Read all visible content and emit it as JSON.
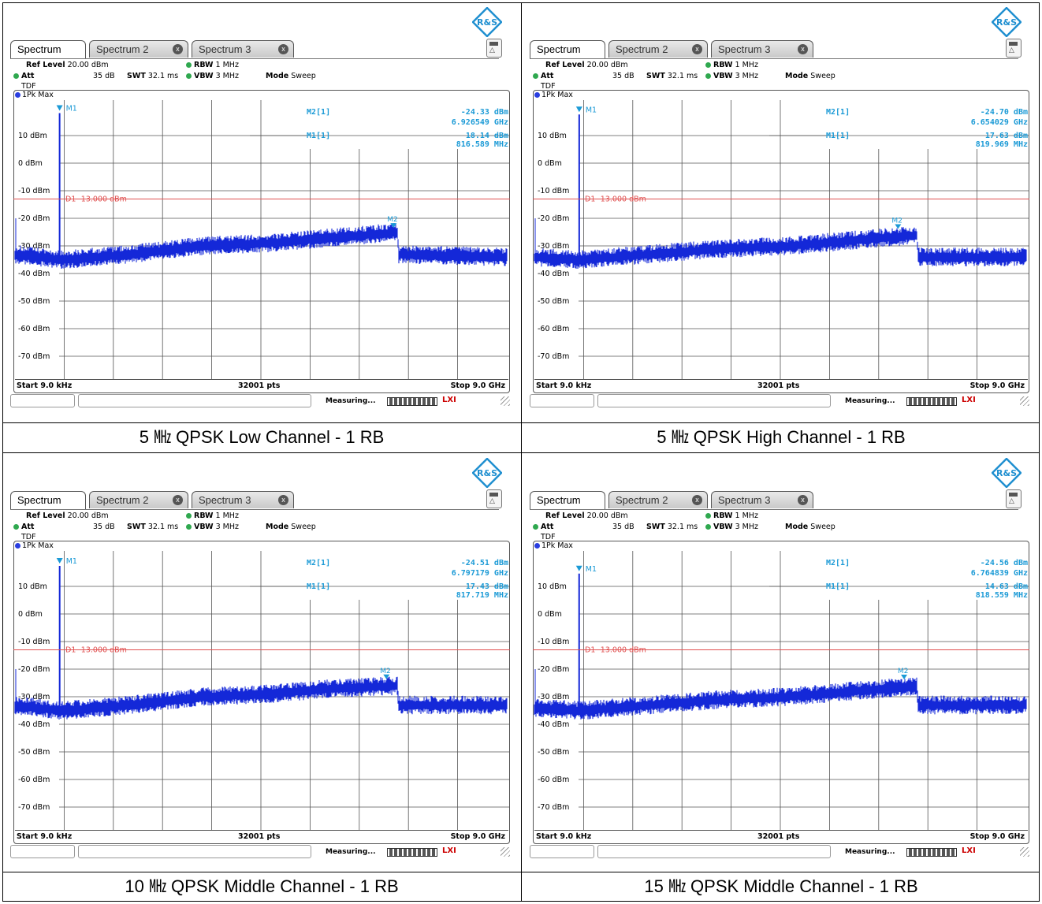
{
  "common": {
    "logo_text": "R&S",
    "tabs": [
      {
        "label": "Spectrum",
        "active": true
      },
      {
        "label": "Spectrum 2",
        "active": false
      },
      {
        "label": "Spectrum 3",
        "active": false
      }
    ],
    "close_glyph": "x",
    "ref_level_label": "Ref Level",
    "ref_level_value": "20.00 dBm",
    "att_label": "Att",
    "att_value": "35 dB",
    "swt_label": "SWT",
    "swt_value": "32.1 ms",
    "rbw_label": "RBW",
    "rbw_value": "1 MHz",
    "vbw_label": "VBW",
    "vbw_value": "3 MHz",
    "mode_label": "Mode",
    "mode_value": "Sweep",
    "tdf_label": "TDF",
    "trace_label": "1Pk Max",
    "y_ticks": [
      "10 dBm",
      "0 dBm",
      "-10 dBm",
      "-20 dBm",
      "-30 dBm",
      "-40 dBm",
      "-50 dBm",
      "-60 dBm",
      "-70 dBm"
    ],
    "limit_label": "D1  -13.000 dBm",
    "m1_label": "M1",
    "m2_label": "M2",
    "m2_readout_label": "M2[1]",
    "m1_readout_label": "M1[1]",
    "start_label": "Start 9.0 kHz",
    "points_label": "32001 pts",
    "stop_label": "Stop 9.0 GHz",
    "measuring_label": "Measuring...",
    "lxi_label": "LXI",
    "colors": {
      "trace": "#1428d8",
      "limit": "#e05050",
      "marker": "#1b9ad6",
      "grid": "#555555"
    }
  },
  "panels": [
    {
      "caption": "5 ㎒ QPSK Low Channel - 1 RB",
      "m2_level": "-24.33 dBm",
      "m2_freq": "6.926549 GHz",
      "m1_level": "18.14 dBm",
      "m1_freq": "816.589 MHz",
      "chart_data": {
        "type": "line",
        "x_range_ghz": [
          9e-06,
          9.0
        ],
        "y_range_dbm": [
          -80,
          20
        ],
        "limit_dbm": -13.0,
        "m1": {
          "x_ghz": 0.8166,
          "y_dbm": 18.14
        },
        "m2": {
          "x_ghz": 6.9265,
          "y_dbm": -24.33
        },
        "noise_floor": [
          [
            0.0,
            -33
          ],
          [
            0.85,
            -35
          ],
          [
            2.1,
            -33
          ],
          [
            3.4,
            -30
          ],
          [
            4.6,
            -29
          ],
          [
            5.8,
            -27
          ],
          [
            7.0,
            -25
          ],
          [
            7.02,
            -33
          ],
          [
            9.0,
            -34
          ]
        ]
      }
    },
    {
      "caption": "5 ㎒ QPSK High Channel - 1 RB",
      "m2_level": "-24.70 dBm",
      "m2_freq": "6.654029 GHz",
      "m1_level": "17.63 dBm",
      "m1_freq": "819.969 MHz",
      "chart_data": {
        "type": "line",
        "x_range_ghz": [
          9e-06,
          9.0
        ],
        "y_range_dbm": [
          -80,
          20
        ],
        "limit_dbm": -13.0,
        "m1": {
          "x_ghz": 0.82,
          "y_dbm": 17.63
        },
        "m2": {
          "x_ghz": 6.654,
          "y_dbm": -24.7
        },
        "noise_floor": [
          [
            0.0,
            -34
          ],
          [
            0.85,
            -35
          ],
          [
            2.1,
            -33
          ],
          [
            3.4,
            -31
          ],
          [
            4.6,
            -30
          ],
          [
            5.8,
            -28
          ],
          [
            7.0,
            -26
          ],
          [
            7.02,
            -34
          ],
          [
            9.0,
            -34
          ]
        ]
      }
    },
    {
      "caption": "10 ㎒ QPSK Middle Channel - 1 RB",
      "m2_level": "-24.51 dBm",
      "m2_freq": "6.797179 GHz",
      "m1_level": "17.43 dBm",
      "m1_freq": "817.719 MHz",
      "chart_data": {
        "type": "line",
        "x_range_ghz": [
          9e-06,
          9.0
        ],
        "y_range_dbm": [
          -80,
          20
        ],
        "limit_dbm": -13.0,
        "m1": {
          "x_ghz": 0.8177,
          "y_dbm": 17.43
        },
        "m2": {
          "x_ghz": 6.7972,
          "y_dbm": -24.51
        },
        "noise_floor": [
          [
            0.0,
            -33
          ],
          [
            0.85,
            -35
          ],
          [
            2.1,
            -33
          ],
          [
            3.4,
            -30
          ],
          [
            4.6,
            -29
          ],
          [
            5.8,
            -27
          ],
          [
            7.0,
            -26
          ],
          [
            7.02,
            -33
          ],
          [
            9.0,
            -33
          ]
        ]
      }
    },
    {
      "caption": "15 ㎒ QPSK Middle Channel - 1 RB",
      "m2_level": "-24.56 dBm",
      "m2_freq": "6.764839 GHz",
      "m1_level": "14.63 dBm",
      "m1_freq": "818.559 MHz",
      "chart_data": {
        "type": "line",
        "x_range_ghz": [
          9e-06,
          9.0
        ],
        "y_range_dbm": [
          -80,
          20
        ],
        "limit_dbm": -13.0,
        "m1": {
          "x_ghz": 0.8186,
          "y_dbm": 14.63
        },
        "m2": {
          "x_ghz": 6.7648,
          "y_dbm": -24.56
        },
        "noise_floor": [
          [
            0.0,
            -34
          ],
          [
            0.85,
            -35
          ],
          [
            2.1,
            -33
          ],
          [
            3.4,
            -31
          ],
          [
            4.6,
            -30
          ],
          [
            5.8,
            -28
          ],
          [
            7.0,
            -26
          ],
          [
            7.02,
            -33
          ],
          [
            9.0,
            -33
          ]
        ]
      }
    }
  ]
}
